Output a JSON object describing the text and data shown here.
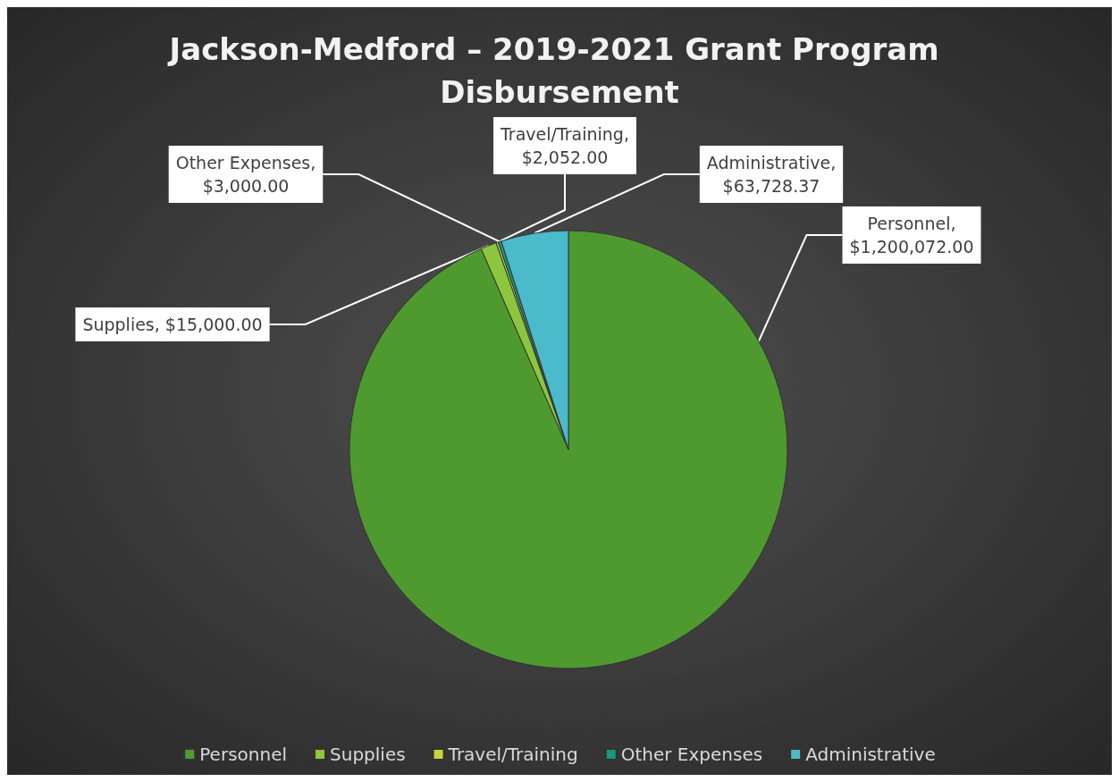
{
  "chart_data": {
    "type": "pie",
    "title": "Jackson-Medford – 2019-2021 Grant Program Disbursement",
    "categories": [
      "Personnel",
      "Supplies",
      "Travel/Training",
      "Other Expenses",
      "Administrative"
    ],
    "values": [
      1200072.0,
      15000.0,
      2052.0,
      3000.0,
      63728.37
    ],
    "value_labels": [
      "Personnel, $1,200,072.00",
      "Supplies, $15,000.00",
      "Travel/Training, $2,052.00",
      "Other Expenses, $3,000.00",
      "Administrative, $63,728.37"
    ],
    "colors": [
      "#4e9a2f",
      "#8cc63e",
      "#c5d43a",
      "#18977c",
      "#4bbacb"
    ],
    "legend": "bottom"
  }
}
